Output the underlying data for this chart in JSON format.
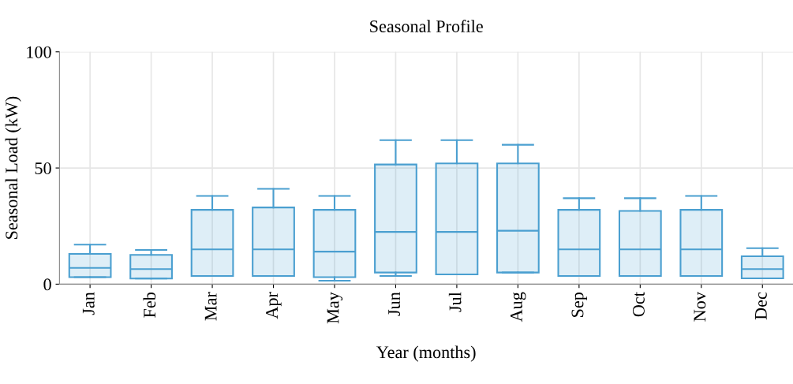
{
  "chart_data": {
    "type": "box",
    "title": "Seasonal Profile",
    "xlabel": "Year (months)",
    "ylabel": "Seasonal Load (kW)",
    "categories": [
      "Jan",
      "Feb",
      "Mar",
      "Apr",
      "May",
      "Jun",
      "Jul",
      "Aug",
      "Sep",
      "Oct",
      "Nov",
      "Dec"
    ],
    "boxes": [
      {
        "low": 3,
        "q1": 3,
        "median": 7,
        "q3": 13,
        "high": 17
      },
      {
        "low": 2.4,
        "q1": 2.4,
        "median": 6.5,
        "q3": 12.6,
        "high": 14.7
      },
      {
        "low": 3.5,
        "q1": 3.5,
        "median": 15,
        "q3": 32,
        "high": 38
      },
      {
        "low": 3.5,
        "q1": 3.5,
        "median": 15,
        "q3": 33,
        "high": 41
      },
      {
        "low": 1.5,
        "q1": 3,
        "median": 14,
        "q3": 32,
        "high": 38
      },
      {
        "low": 3.5,
        "q1": 5,
        "median": 22.5,
        "q3": 51.5,
        "high": 62
      },
      {
        "low": 4.2,
        "q1": 4.2,
        "median": 22.5,
        "q3": 52,
        "high": 62
      },
      {
        "low": 5,
        "q1": 5,
        "median": 23,
        "q3": 52,
        "high": 60
      },
      {
        "low": 3.5,
        "q1": 3.5,
        "median": 15,
        "q3": 32,
        "high": 37
      },
      {
        "low": 3.5,
        "q1": 3.5,
        "median": 15,
        "q3": 31.5,
        "high": 37
      },
      {
        "low": 3.5,
        "q1": 3.5,
        "median": 15,
        "q3": 32,
        "high": 38
      },
      {
        "low": 2.5,
        "q1": 2.5,
        "median": 6.5,
        "q3": 12,
        "high": 15.5
      }
    ],
    "color": "#4a9fd0",
    "ylim": [
      0,
      100
    ],
    "yticks": [
      0,
      50,
      100
    ],
    "grid": true
  }
}
